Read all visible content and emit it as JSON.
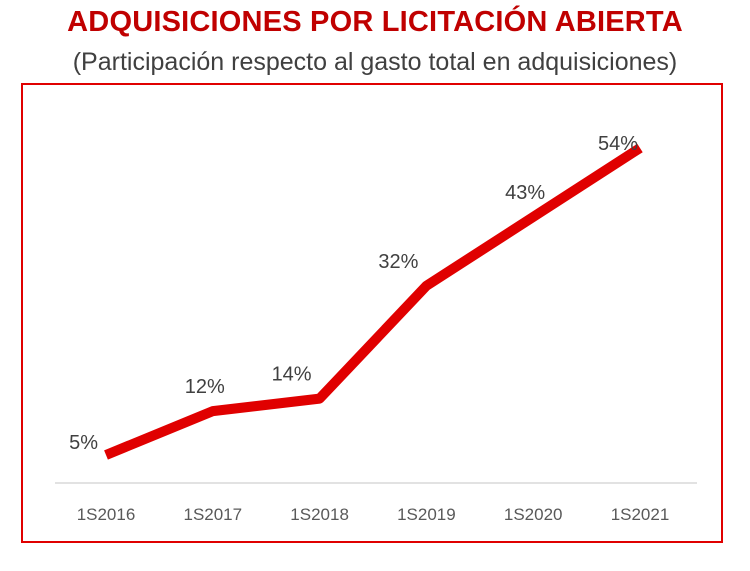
{
  "colors": {
    "accent": "#e00000",
    "title": "#c00000"
  },
  "chart_data": {
    "type": "line",
    "title": "ADQUISICIONES POR LICITACIÓN ABIERTA",
    "subtitle": "(Participación respecto al gasto total en adquisiciones)",
    "categories": [
      "1S2016",
      "1S2017",
      "1S2018",
      "1S2019",
      "1S2020",
      "1S2021"
    ],
    "series": [
      {
        "values": [
          5,
          12,
          14,
          32,
          43,
          54
        ],
        "labels": [
          "5%",
          "12%",
          "14%",
          "32%",
          "43%",
          "54%"
        ]
      }
    ],
    "ylim": [
      0,
      60
    ],
    "grid": false,
    "legend": "none"
  }
}
